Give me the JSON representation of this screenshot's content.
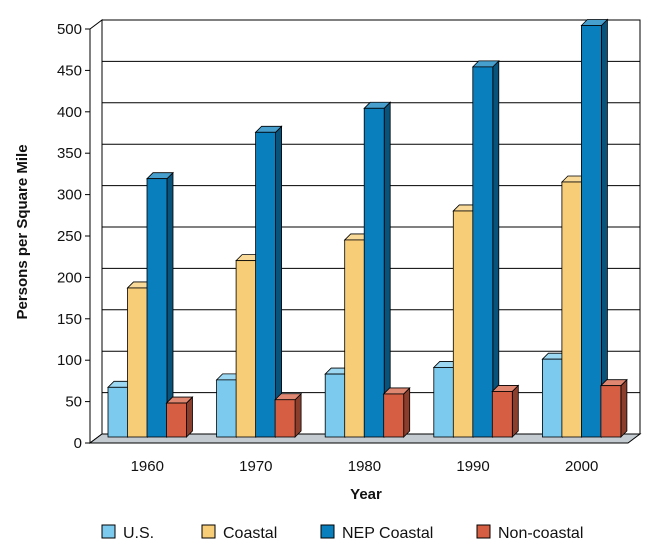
{
  "chart_data": {
    "type": "bar",
    "title": "",
    "xlabel": "Year",
    "ylabel": "Persons per Square Mile",
    "categories": [
      "1960",
      "1970",
      "1980",
      "1990",
      "2000"
    ],
    "ylim": [
      0,
      500
    ],
    "yticks": [
      0,
      50,
      100,
      150,
      200,
      250,
      300,
      350,
      400,
      450,
      500
    ],
    "grid": true,
    "legend_position": "bottom",
    "series": [
      {
        "name": "U.S.",
        "color": "#7ccbef",
        "values": [
          60,
          69,
          76,
          84,
          94
        ]
      },
      {
        "name": "Coastal",
        "color": "#f7cd77",
        "values": [
          180,
          213,
          238,
          273,
          308
        ]
      },
      {
        "name": "NEP Coastal",
        "color": "#0a7fbd",
        "values": [
          312,
          368,
          397,
          447,
          497
        ]
      },
      {
        "name": "Non-coastal",
        "color": "#d65f43",
        "values": [
          41,
          45,
          52,
          55,
          62
        ]
      }
    ]
  }
}
